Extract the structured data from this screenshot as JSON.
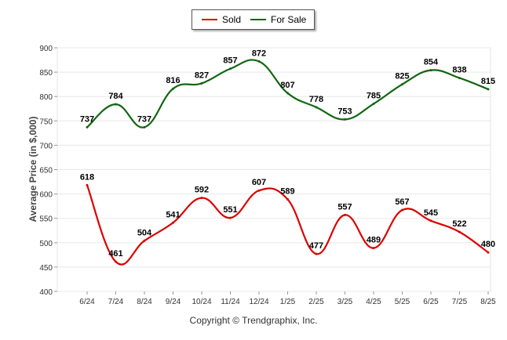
{
  "chart_data": {
    "type": "line",
    "categories": [
      "6/24",
      "7/24",
      "8/24",
      "9/24",
      "10/24",
      "11/24",
      "12/24",
      "1/25",
      "2/25",
      "3/25",
      "4/25",
      "5/25",
      "6/25",
      "7/25",
      "8/25"
    ],
    "series": [
      {
        "name": "Sold",
        "color": "#dd0000",
        "values": [
          618,
          461,
          504,
          541,
          592,
          551,
          607,
          589,
          477,
          557,
          489,
          567,
          545,
          522,
          480
        ]
      },
      {
        "name": "For Sale",
        "color": "#116611",
        "values": [
          737,
          784,
          737,
          816,
          827,
          857,
          872,
          807,
          778,
          753,
          785,
          825,
          854,
          838,
          815
        ]
      }
    ],
    "ylabel": "Average Price (in $,000)",
    "ylim": [
      400,
      900
    ],
    "yticks": [
      400,
      450,
      500,
      550,
      600,
      650,
      700,
      750,
      800,
      850,
      900
    ],
    "grid": true,
    "legend_position": "top-center"
  },
  "footer": {
    "copyright": "Copyright © Trendgraphix, Inc."
  }
}
